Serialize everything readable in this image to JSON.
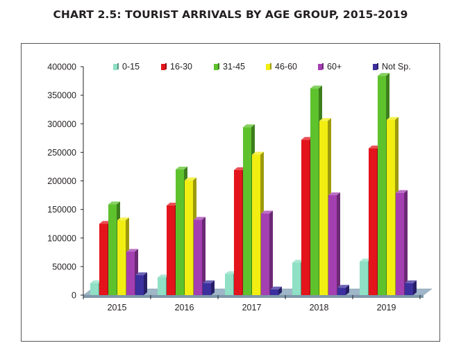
{
  "title": "CHART 2.5: TOURIST ARRIVALS BY AGE GROUP, 2015-2019",
  "chart_data": {
    "type": "bar",
    "title": "CHART 2.5: TOURIST ARRIVALS BY AGE GROUP, 2015-2019",
    "xlabel": "",
    "ylabel": "",
    "categories": [
      "2015",
      "2016",
      "2017",
      "2018",
      "2019"
    ],
    "ylim": [
      0,
      400000
    ],
    "yticks": [
      0,
      50000,
      100000,
      150000,
      200000,
      250000,
      300000,
      350000,
      400000
    ],
    "ytick_labels": [
      "0",
      "50000",
      "100000",
      "150000",
      "200000",
      "250000",
      "300000",
      "350000",
      "400000"
    ],
    "legend_position": "top",
    "grid": false,
    "series": [
      {
        "name": "0-15",
        "color": "#8fe0c4",
        "values": [
          21000,
          31000,
          37000,
          57000,
          59000
        ]
      },
      {
        "name": "16-30",
        "color": "#e3141b",
        "values": [
          125000,
          157000,
          219000,
          272000,
          257000
        ]
      },
      {
        "name": "31-45",
        "color": "#5ec22d",
        "values": [
          159000,
          220000,
          294000,
          362000,
          384000
        ]
      },
      {
        "name": "46-60",
        "color": "#f2ee12",
        "values": [
          131000,
          201000,
          246000,
          305000,
          307000
        ]
      },
      {
        "name": "60+",
        "color": "#a43fb2",
        "values": [
          76000,
          132000,
          143000,
          175000,
          179000
        ]
      },
      {
        "name": "Not Sp.",
        "color": "#3c2f9e",
        "values": [
          35000,
          21000,
          10000,
          13000,
          21000
        ]
      }
    ]
  }
}
